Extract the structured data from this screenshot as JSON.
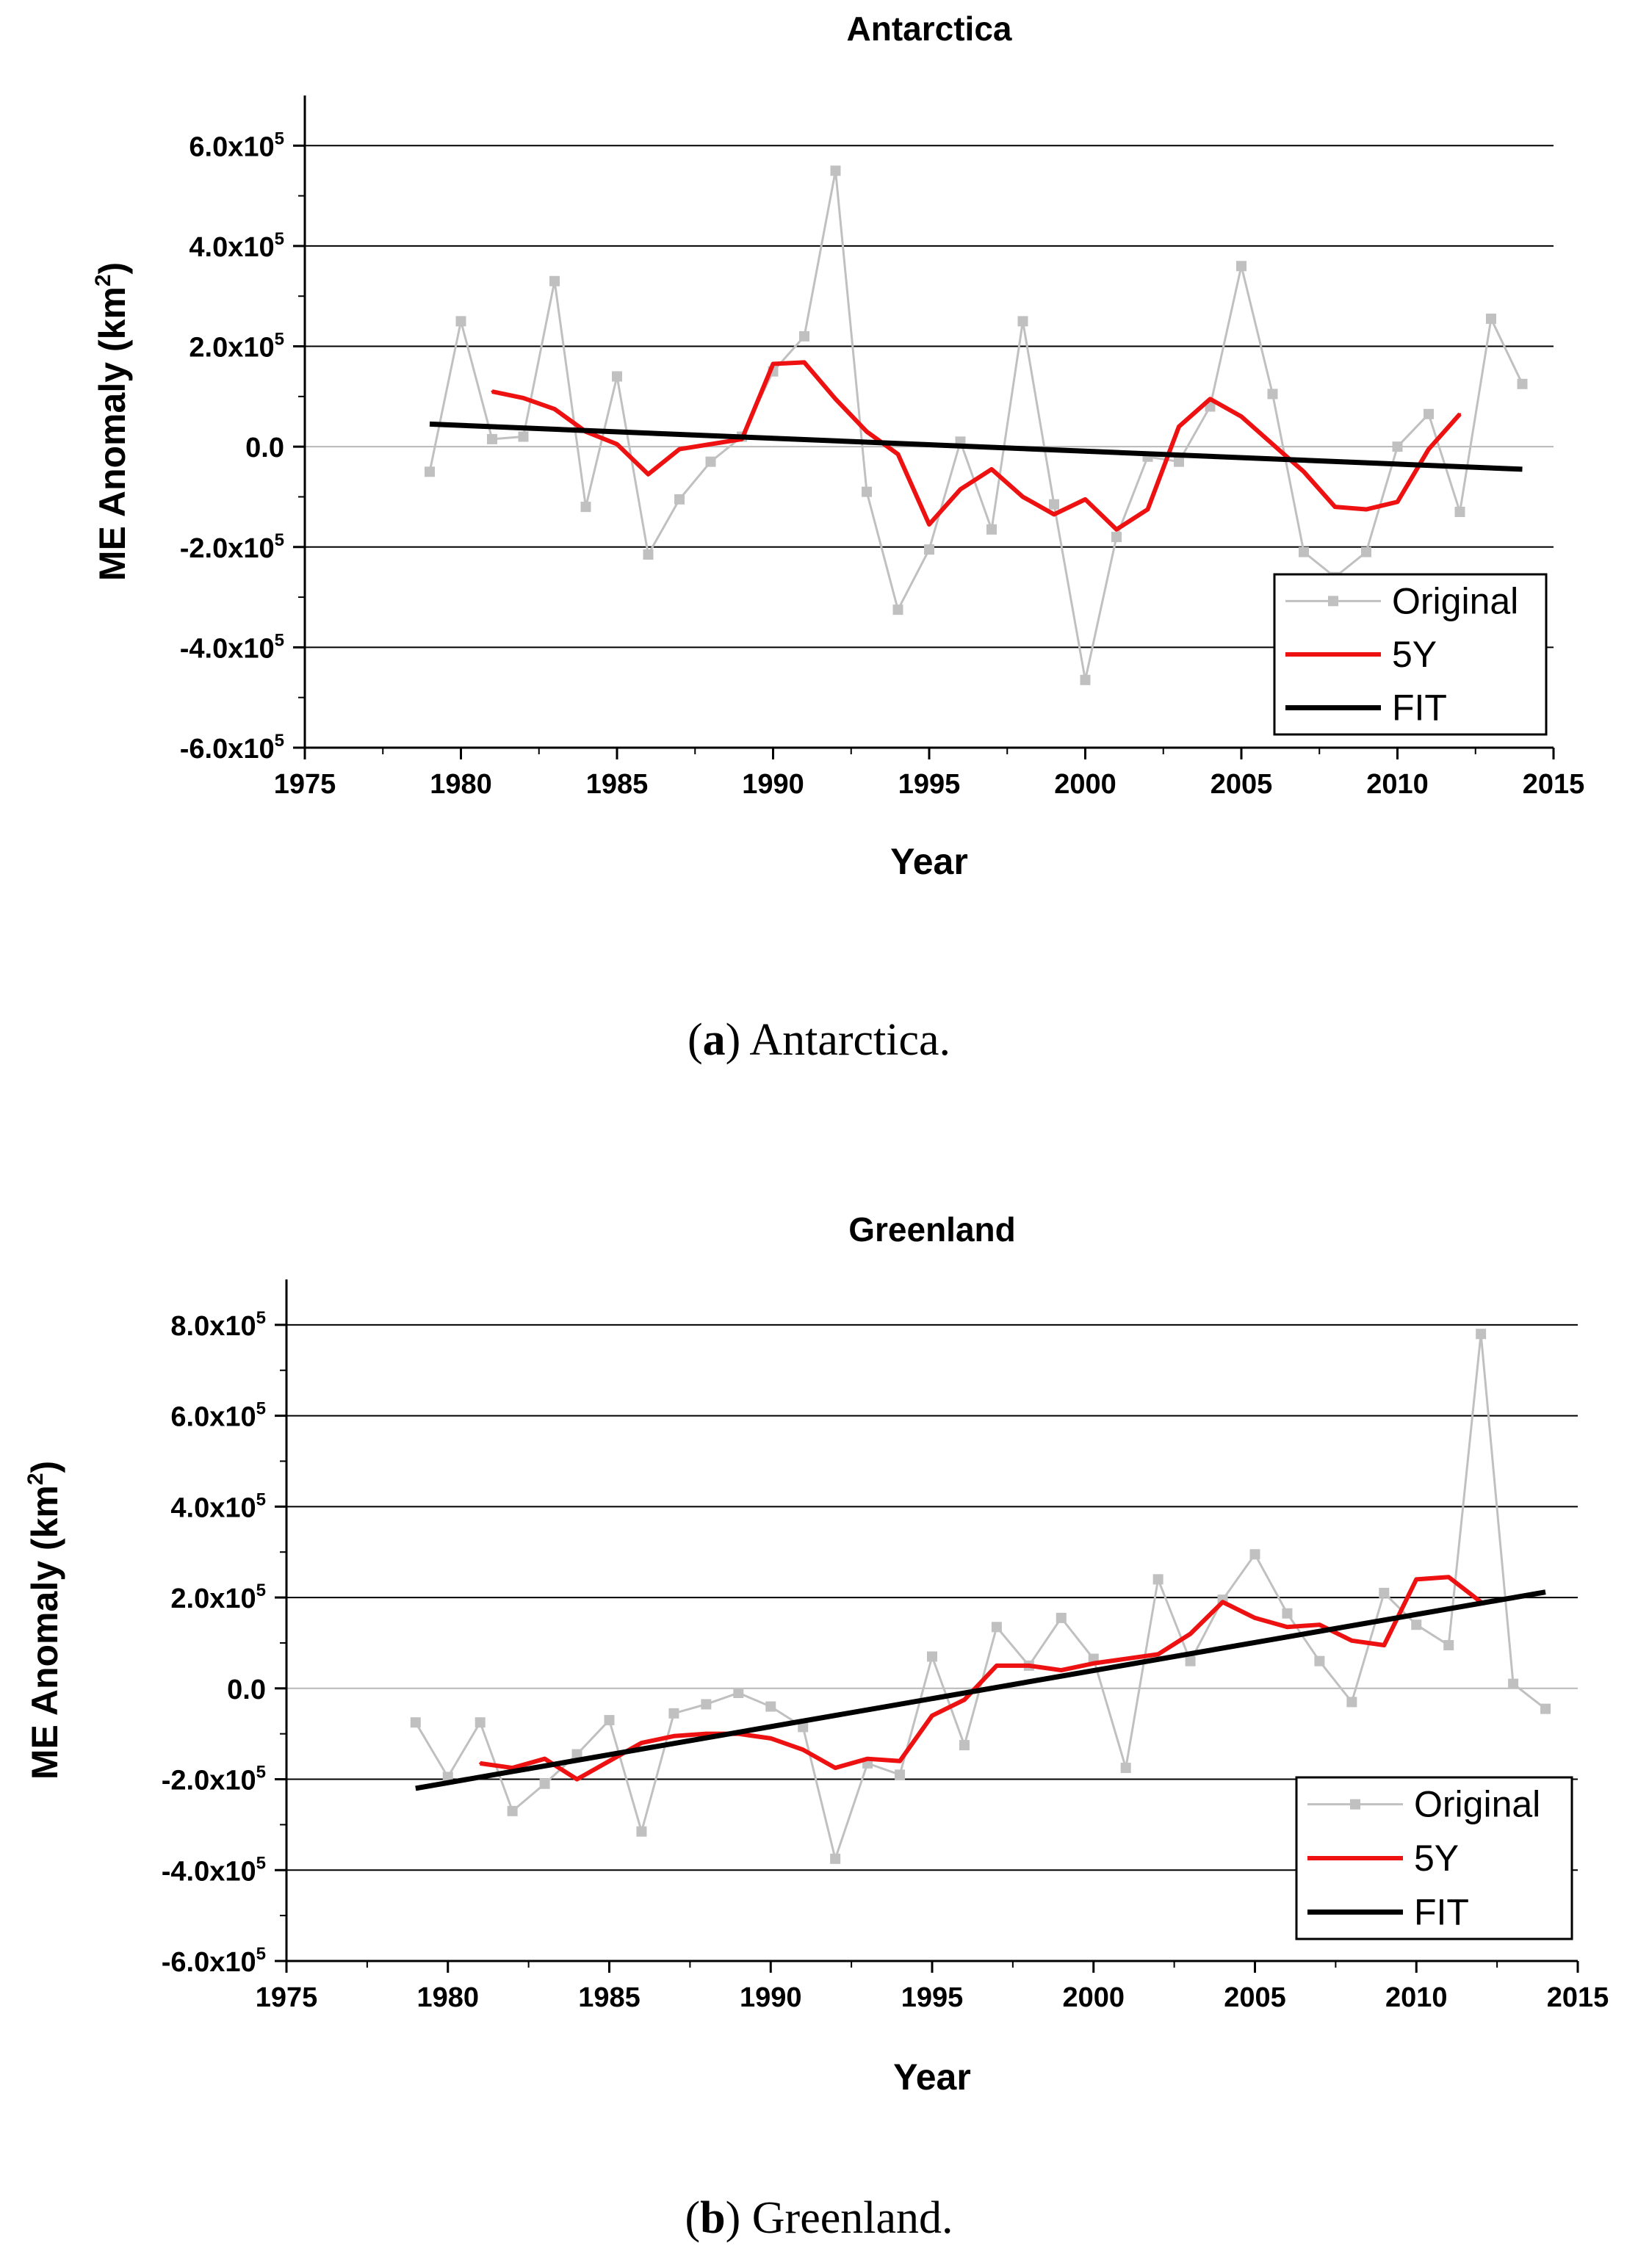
{
  "chart_data": [
    {
      "type": "line",
      "title": "Antarctica",
      "caption_letter": "a",
      "caption_text": "Antarctica.",
      "xlabel": "Year",
      "ylabel_main": "ME Anomaly (km",
      "ylabel_sup": "2",
      "ylabel_end": ")",
      "xlim": [
        1975,
        2015
      ],
      "ylim": [
        -600000,
        700000
      ],
      "xticks": [
        1975,
        1980,
        1985,
        1990,
        1995,
        2000,
        2005,
        2010,
        2015
      ],
      "yticks": [
        {
          "value": 600000,
          "mant": "6.0x10",
          "exp": "5"
        },
        {
          "value": 400000,
          "mant": "4.0x10",
          "exp": "5"
        },
        {
          "value": 200000,
          "mant": "2.0x10",
          "exp": "5"
        },
        {
          "value": 0,
          "mant": "0.0",
          "exp": ""
        },
        {
          "value": -200000,
          "mant": "-2.0x10",
          "exp": "5"
        },
        {
          "value": -400000,
          "mant": "-4.0x10",
          "exp": "5"
        },
        {
          "value": -600000,
          "mant": "-6.0x10",
          "exp": "5"
        }
      ],
      "gridlines": [
        600000,
        400000,
        200000,
        0,
        -200000,
        -400000
      ],
      "legend_position": "bottom-right",
      "legend": [
        "Original",
        "5Y",
        "FIT"
      ],
      "colors": {
        "original": "#c0c0c0",
        "fiveyear": "#ee1111",
        "fit": "#000000",
        "grid": "#000000"
      },
      "series": [
        {
          "name": "Original",
          "x": [
            1979,
            1980,
            1981,
            1982,
            1983,
            1984,
            1985,
            1986,
            1987,
            1988,
            1989,
            1990,
            1991,
            1992,
            1993,
            1994,
            1995,
            1996,
            1997,
            1998,
            1999,
            2000,
            2001,
            2002,
            2003,
            2004,
            2005,
            2006,
            2007,
            2008,
            2009,
            2010,
            2011,
            2012,
            2013,
            2014
          ],
          "y": [
            -50000,
            250000,
            15000,
            20000,
            330000,
            -120000,
            140000,
            -215000,
            -105000,
            -30000,
            20000,
            150000,
            220000,
            550000,
            -90000,
            -325000,
            -205000,
            10000,
            -165000,
            250000,
            -115000,
            -465000,
            -180000,
            -20000,
            -30000,
            80000,
            360000,
            105000,
            -210000,
            -260000,
            -210000,
            0,
            65000,
            -130000,
            255000,
            125000
          ]
        },
        {
          "name": "5Y",
          "x": [
            1981,
            1982,
            1983,
            1984,
            1985,
            1986,
            1987,
            1988,
            1989,
            1990,
            1991,
            1992,
            1993,
            1994,
            1995,
            1996,
            1997,
            1998,
            1999,
            2000,
            2001,
            2002,
            2003,
            2004,
            2005,
            2006,
            2007,
            2008,
            2009,
            2010,
            2011,
            2012
          ],
          "y": [
            110000,
            97000,
            75000,
            30000,
            5000,
            -55000,
            -5000,
            5000,
            15000,
            165000,
            168000,
            95000,
            30000,
            -15000,
            -155000,
            -85000,
            -45000,
            -100000,
            -135000,
            -105000,
            -165000,
            -125000,
            40000,
            95000,
            60000,
            5000,
            -50000,
            -120000,
            -125000,
            -110000,
            -5000,
            65000
          ]
        },
        {
          "name": "FIT",
          "x": [
            1979,
            2014
          ],
          "y": [
            45000,
            -45000
          ]
        }
      ]
    },
    {
      "type": "line",
      "title": "Greenland",
      "caption_letter": "b",
      "caption_text": "Greenland.",
      "xlabel": "Year",
      "ylabel_main": "ME Anomaly (km",
      "ylabel_sup": "2",
      "ylabel_end": ")",
      "xlim": [
        1975,
        2015
      ],
      "ylim": [
        -600000,
        900000
      ],
      "xticks": [
        1975,
        1980,
        1985,
        1990,
        1995,
        2000,
        2005,
        2010,
        2015
      ],
      "yticks": [
        {
          "value": 800000,
          "mant": "8.0x10",
          "exp": "5"
        },
        {
          "value": 600000,
          "mant": "6.0x10",
          "exp": "5"
        },
        {
          "value": 400000,
          "mant": "4.0x10",
          "exp": "5"
        },
        {
          "value": 200000,
          "mant": "2.0x10",
          "exp": "5"
        },
        {
          "value": 0,
          "mant": "0.0",
          "exp": ""
        },
        {
          "value": -200000,
          "mant": "-2.0x10",
          "exp": "5"
        },
        {
          "value": -400000,
          "mant": "-4.0x10",
          "exp": "5"
        },
        {
          "value": -600000,
          "mant": "-6.0x10",
          "exp": "5"
        }
      ],
      "gridlines": [
        800000,
        600000,
        400000,
        200000,
        0,
        -200000,
        -400000
      ],
      "legend_position": "bottom-right",
      "legend": [
        "Original",
        "5Y",
        "FIT"
      ],
      "colors": {
        "original": "#c0c0c0",
        "fiveyear": "#ee1111",
        "fit": "#000000",
        "grid": "#000000"
      },
      "series": [
        {
          "name": "Original",
          "x": [
            1979,
            1980,
            1981,
            1982,
            1983,
            1984,
            1985,
            1986,
            1987,
            1988,
            1989,
            1990,
            1991,
            1992,
            1993,
            1994,
            1995,
            1996,
            1997,
            1998,
            1999,
            2000,
            2001,
            2002,
            2003,
            2004,
            2005,
            2006,
            2007,
            2008,
            2009,
            2010,
            2011,
            2012,
            2013,
            2014
          ],
          "y": [
            -75000,
            -195000,
            -75000,
            -270000,
            -210000,
            -145000,
            -70000,
            -315000,
            -55000,
            -35000,
            -10000,
            -40000,
            -85000,
            -375000,
            -165000,
            -190000,
            70000,
            -125000,
            135000,
            50000,
            155000,
            65000,
            -175000,
            240000,
            60000,
            195000,
            295000,
            165000,
            60000,
            -30000,
            210000,
            140000,
            95000,
            780000,
            10000,
            -45000
          ]
        },
        {
          "name": "5Y",
          "x": [
            1981,
            1982,
            1983,
            1984,
            1985,
            1986,
            1987,
            1988,
            1989,
            1990,
            1991,
            1992,
            1993,
            1994,
            1995,
            1996,
            1997,
            1998,
            1999,
            2000,
            2001,
            2002,
            2003,
            2004,
            2005,
            2006,
            2007,
            2008,
            2009,
            2010,
            2011,
            2012
          ],
          "y": [
            -165000,
            -175000,
            -155000,
            -200000,
            -160000,
            -120000,
            -105000,
            -100000,
            -100000,
            -110000,
            -135000,
            -175000,
            -155000,
            -160000,
            -60000,
            -25000,
            50000,
            50000,
            40000,
            55000,
            65000,
            75000,
            120000,
            190000,
            155000,
            135000,
            140000,
            105000,
            95000,
            240000,
            245000,
            190000
          ]
        },
        {
          "name": "FIT",
          "x": [
            1979,
            2014
          ],
          "y": [
            -220000,
            212000
          ]
        }
      ]
    }
  ]
}
